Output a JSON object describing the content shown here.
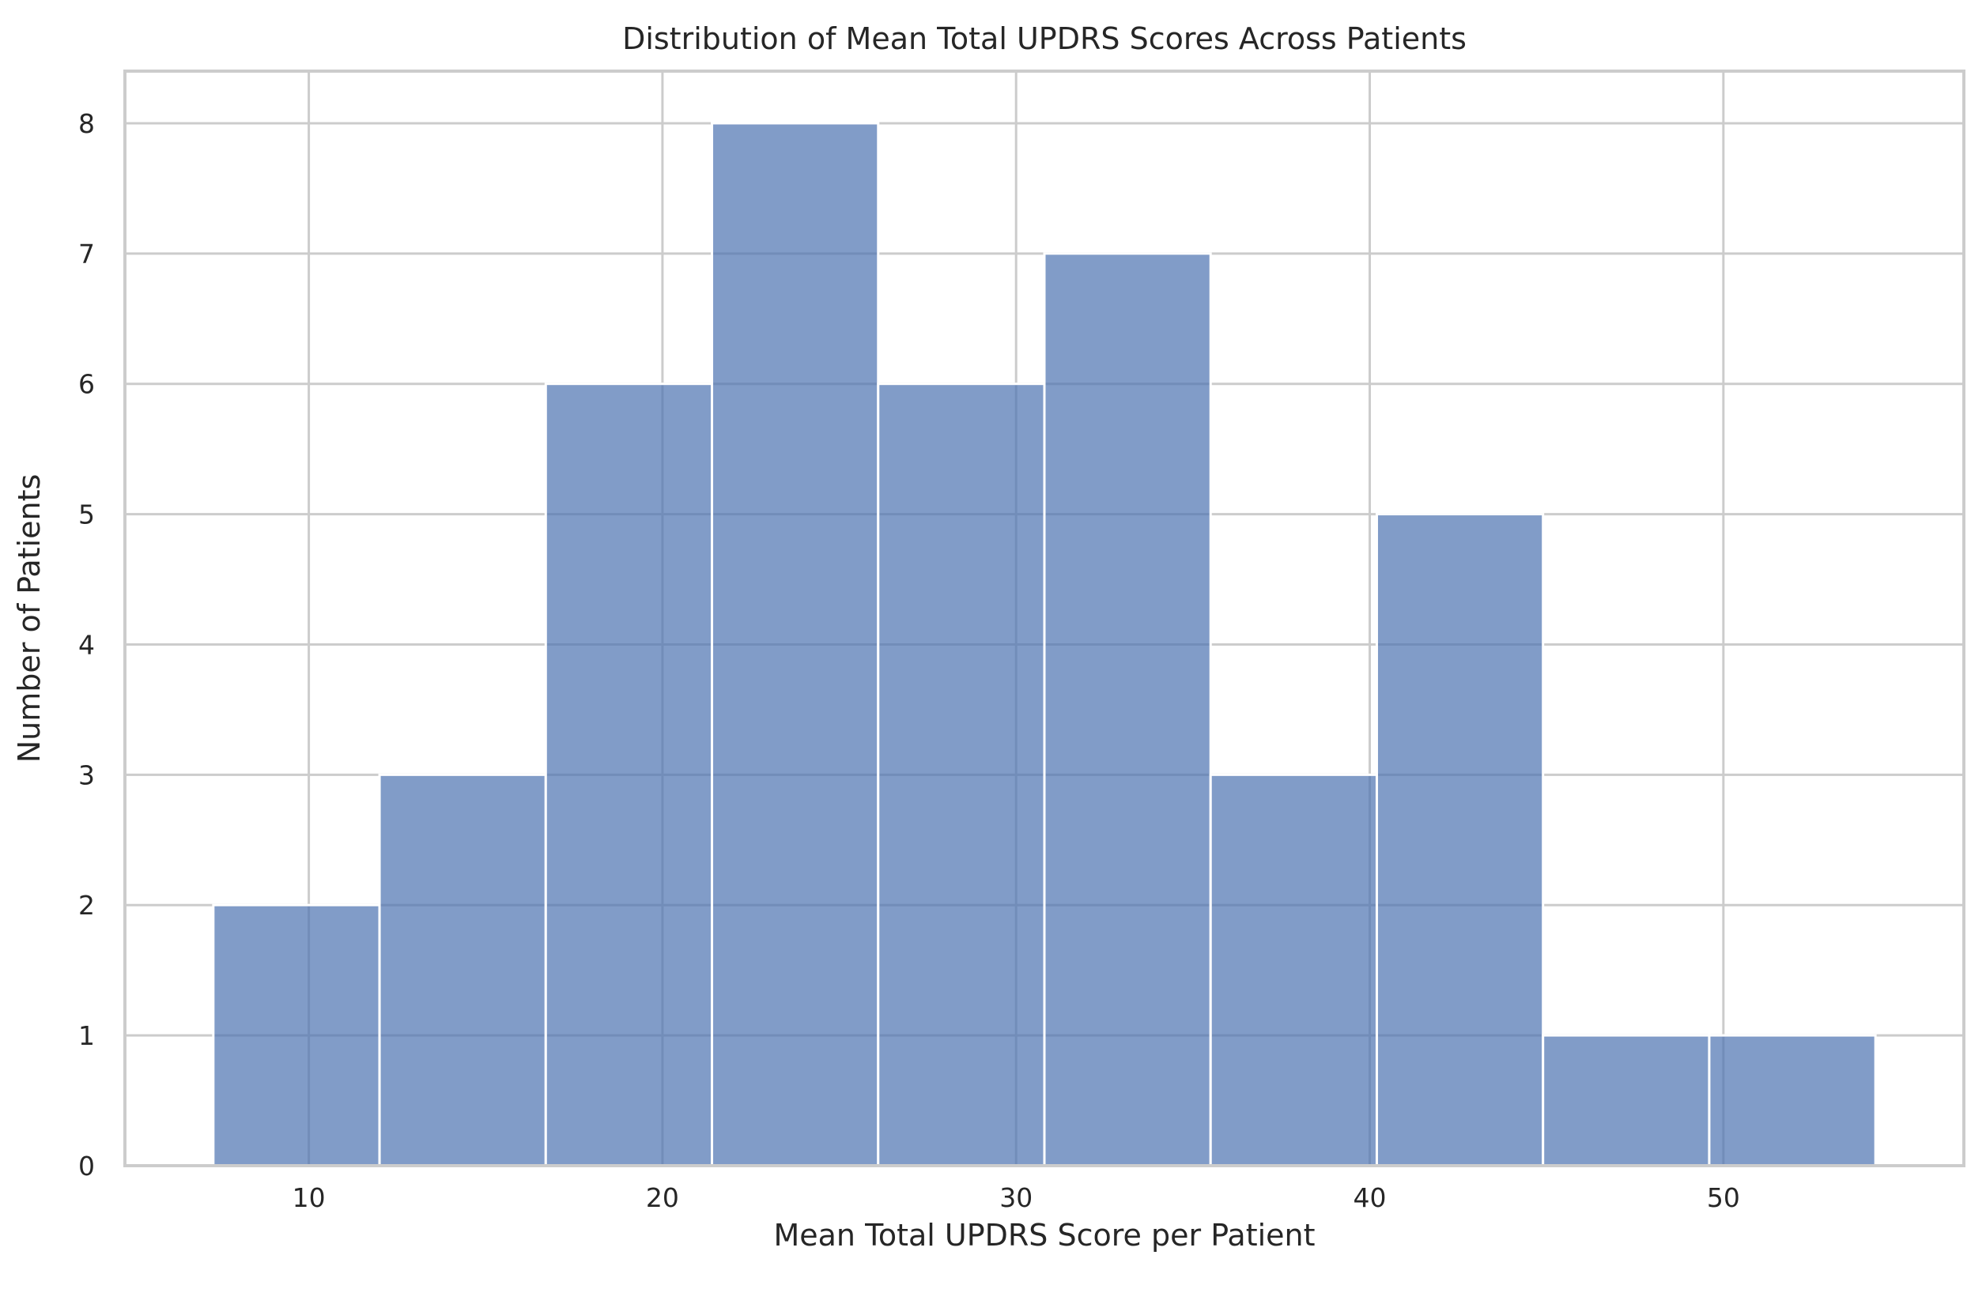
{
  "chart_data": {
    "type": "bar",
    "title": "Distribution of Mean Total UPDRS Scores Across Patients",
    "xlabel": "Mean Total UPDRS Score per Patient",
    "ylabel": "Number of Patients",
    "bin_edges": [
      7.3,
      12.0,
      16.7,
      21.4,
      26.1,
      30.8,
      35.5,
      40.2,
      44.9,
      49.6,
      54.3
    ],
    "values": [
      2,
      3,
      6,
      8,
      6,
      7,
      3,
      5,
      1,
      1
    ],
    "xlim": [
      4.8,
      56.8
    ],
    "ylim": [
      0,
      8.4
    ],
    "xticks": [
      10,
      20,
      30,
      40,
      50
    ],
    "yticks": [
      0,
      1,
      2,
      3,
      4,
      5,
      6,
      7,
      8
    ],
    "grid": true,
    "bar_color": "#4c72b0",
    "grid_color": "#cccccc"
  }
}
